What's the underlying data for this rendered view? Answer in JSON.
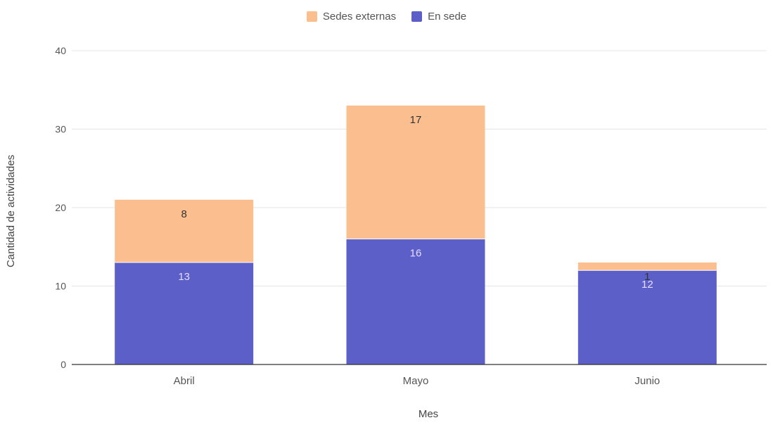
{
  "chart_data": {
    "type": "bar",
    "stacked": true,
    "categories": [
      "Abril",
      "Mayo",
      "Junio"
    ],
    "series": [
      {
        "name": "En sede",
        "values": [
          13,
          16,
          12
        ],
        "color": "#5b5fc7",
        "label_color": "#e6dcff"
      },
      {
        "name": "Sedes externas",
        "values": [
          8,
          17,
          1
        ],
        "color": "#fbbf8f",
        "label_color": "#333333"
      }
    ],
    "legend_order": [
      "Sedes externas",
      "En sede"
    ],
    "legend_position": "top-center",
    "xlabel": "Mes",
    "ylabel": "Cantidad de actividades",
    "ylim": [
      0,
      40
    ],
    "yticks": [
      "0",
      "10",
      "20",
      "30",
      "40"
    ],
    "grid": true
  }
}
